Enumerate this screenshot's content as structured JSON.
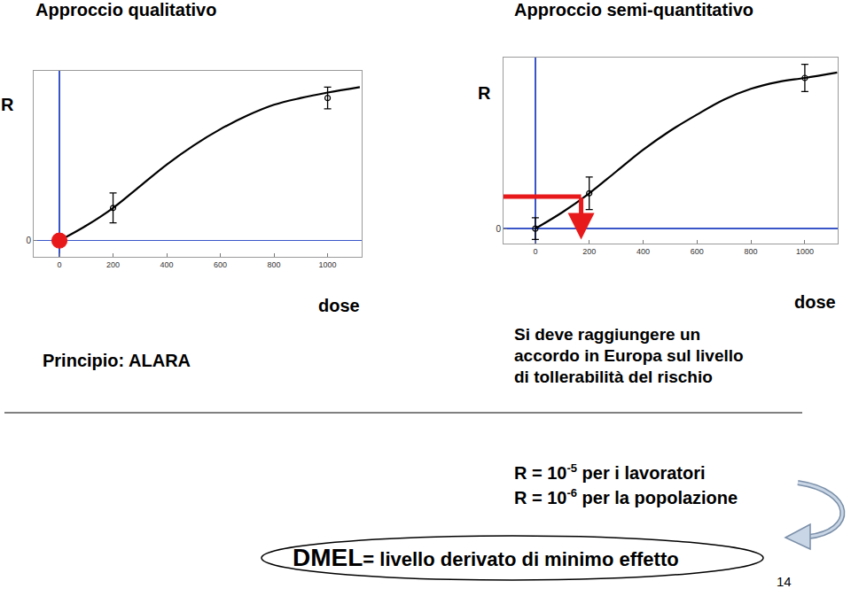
{
  "chart_data": [
    {
      "type": "scatter",
      "x_label": "dose",
      "y_label": "R",
      "xlim": [
        -96,
        1127
      ],
      "xticks": [
        0,
        200,
        400,
        600,
        800,
        1000
      ],
      "ylim": [
        -0.12,
        1.25
      ],
      "yticks": [
        0
      ],
      "grid": false,
      "series": [
        {
          "type": "line",
          "color": "#000000",
          "x": [
            0,
            100,
            200,
            300,
            400,
            500,
            600,
            700,
            800,
            900,
            1000,
            1120
          ],
          "values": [
            0,
            0.11,
            0.24,
            0.4,
            0.56,
            0.7,
            0.82,
            0.92,
            1.0,
            1.05,
            1.09,
            1.13
          ]
        },
        {
          "type": "scatter",
          "color": "#000000",
          "marker": "circle-open",
          "x": [
            0,
            200,
            1000
          ],
          "values": [
            0,
            0.24,
            1.05
          ],
          "errors": [
            0.03,
            0.11,
            0.08
          ]
        },
        {
          "type": "scatter",
          "color": "#e8191b",
          "marker": "circle",
          "x": [
            0
          ],
          "values": [
            0
          ]
        }
      ]
    },
    {
      "type": "scatter",
      "x_label": "dose",
      "y_label": "R",
      "xlim": [
        -118,
        1122
      ],
      "xticks": [
        0,
        200,
        400,
        600,
        800,
        1000
      ],
      "ylim": [
        -0.11,
        1.26
      ],
      "yticks": [
        0
      ],
      "grid": false,
      "arrow": {
        "x": 170,
        "y": 0.235,
        "y_end": -0.08,
        "color": "#e8191b"
      },
      "series": [
        {
          "type": "line",
          "color": "#000000",
          "x": [
            0,
            100,
            200,
            300,
            400,
            500,
            600,
            700,
            800,
            900,
            1000,
            1120
          ],
          "values": [
            0,
            0.12,
            0.26,
            0.42,
            0.58,
            0.72,
            0.84,
            0.95,
            1.03,
            1.08,
            1.11,
            1.15
          ]
        },
        {
          "type": "scatter",
          "color": "#000000",
          "marker": "circle-open",
          "x": [
            0,
            200,
            1000
          ],
          "values": [
            0,
            0.26,
            1.11
          ],
          "errors": [
            0.08,
            0.12,
            0.1
          ]
        }
      ]
    }
  ],
  "slide": {
    "title_left": "Approccio qualitativo",
    "title_right": "Approccio semi-quantitativo",
    "principle": "Principio: ALARA",
    "note_lines": [
      "Si deve raggiungere un",
      "accordo in Europa sul livello",
      "di tollerabilità del rischio"
    ],
    "risk_levels": [
      {
        "prefix": "R = 10",
        "exponent": "-5",
        "suffix": " per i lavoratori"
      },
      {
        "prefix": "R = 10",
        "exponent": "-6",
        "suffix": " per la popolazione"
      }
    ],
    "dmel": {
      "term": "DMEL",
      "definition": "= livello derivato di minimo effetto"
    },
    "page": "14"
  }
}
